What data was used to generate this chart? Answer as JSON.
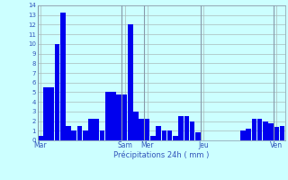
{
  "values": [
    0.5,
    5.5,
    5.5,
    10.0,
    13.3,
    1.5,
    1.0,
    1.5,
    1.0,
    2.2,
    2.2,
    1.0,
    5.0,
    5.0,
    4.8,
    4.8,
    12.0,
    3.0,
    2.2,
    2.2,
    0.5,
    1.5,
    1.0,
    1.0,
    0.5,
    2.5,
    2.5,
    2.0,
    0.8,
    0.0,
    0.0,
    0.0,
    0.0,
    0.0,
    0.0,
    0.0,
    1.0,
    1.2,
    2.2,
    2.2,
    2.0,
    1.8,
    1.4,
    1.5
  ],
  "day_labels": [
    "Mar",
    "Sam",
    "Mer",
    "Jeu",
    "Ven"
  ],
  "day_tick_positions": [
    0,
    15,
    19,
    29,
    42
  ],
  "vline_positions": [
    -0.5,
    14.5,
    18.5,
    28.5,
    41.5
  ],
  "xlabel": "Précipitations 24h ( mm )",
  "ylim": [
    0,
    14
  ],
  "yticks": [
    0,
    1,
    2,
    3,
    4,
    5,
    6,
    7,
    8,
    9,
    10,
    11,
    12,
    13,
    14
  ],
  "bar_color": "#0000EE",
  "bg_color": "#CCFFFF",
  "grid_color": "#AABBBB",
  "text_color": "#3355BB",
  "fig_bg": "#CCFFFF"
}
